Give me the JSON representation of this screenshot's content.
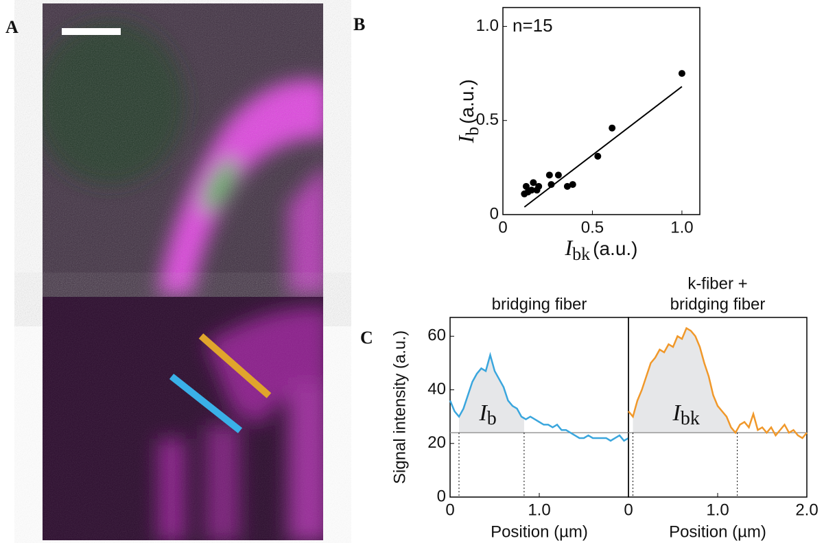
{
  "panel_labels": [
    "A",
    "B",
    "C"
  ],
  "chart_data": [
    {
      "type": "scatter",
      "annotation": "n=15",
      "color": "#000000",
      "x": [
        0.12,
        0.13,
        0.14,
        0.16,
        0.17,
        0.19,
        0.2,
        0.26,
        0.27,
        0.31,
        0.36,
        0.39,
        0.53,
        0.61,
        1.0
      ],
      "y": [
        0.11,
        0.15,
        0.12,
        0.13,
        0.17,
        0.13,
        0.15,
        0.21,
        0.16,
        0.21,
        0.15,
        0.16,
        0.31,
        0.46,
        0.75
      ],
      "fit": {
        "x": [
          0.12,
          1.0
        ],
        "y": [
          0.04,
          0.68
        ]
      },
      "xlim": [
        0,
        1.1
      ],
      "ylim": [
        0,
        1.1
      ],
      "xticks": [
        0,
        0.5,
        {
          "value": 1,
          "label": "1.0"
        }
      ],
      "yticks": [
        0,
        0.5,
        {
          "value": 1,
          "label": "1.0"
        }
      ],
      "xlabel": {
        "symbol": "I",
        "sub": "bk",
        "unit": "(a.u.)"
      },
      "ylabel": {
        "symbol": "I",
        "sub": "b",
        "unit": "(a.u.)"
      }
    },
    {
      "type": "line",
      "title": [
        "bridging fiber"
      ],
      "x": [
        0,
        0.05,
        0.1,
        0.15,
        0.2,
        0.25,
        0.3,
        0.35,
        0.4,
        0.45,
        0.5,
        0.55,
        0.6,
        0.65,
        0.7,
        0.75,
        0.8,
        0.85,
        0.9,
        0.95,
        1.0,
        1.05,
        1.1,
        1.15,
        1.2,
        1.25,
        1.3,
        1.35,
        1.4,
        1.45,
        1.5,
        1.55,
        1.6,
        1.65,
        1.7,
        1.75,
        1.8,
        1.85,
        1.9,
        1.95,
        2.0
      ],
      "series": [
        {
          "color": "#3aa6dd",
          "values": [
            36,
            32,
            30,
            33,
            38,
            43,
            46,
            48,
            47,
            53,
            47,
            44,
            41,
            36,
            34,
            33,
            30,
            29,
            30,
            29,
            28,
            27,
            27,
            26,
            27,
            25,
            25,
            24,
            23,
            22,
            22,
            23,
            22,
            22,
            22,
            22,
            21,
            22,
            23,
            21,
            22
          ]
        }
      ],
      "baseline": 24,
      "bounds": [
        0.1,
        0.83
      ],
      "annotation": {
        "symbol": "I",
        "sub": "b"
      },
      "xlim": [
        0,
        2
      ],
      "ylim": [
        0,
        67
      ],
      "xticks": [
        0,
        {
          "value": 1,
          "label": "1.0"
        }
      ],
      "yticks": [
        0,
        20,
        40,
        60
      ],
      "xlabel": "Position (µm)",
      "ylabel": "Signal intensity (a.u.)"
    },
    {
      "type": "line",
      "title": [
        "k-fiber +",
        "bridging fiber"
      ],
      "x": [
        0,
        0.05,
        0.1,
        0.15,
        0.2,
        0.25,
        0.3,
        0.35,
        0.4,
        0.45,
        0.5,
        0.55,
        0.6,
        0.65,
        0.7,
        0.75,
        0.8,
        0.85,
        0.9,
        0.95,
        1.0,
        1.05,
        1.1,
        1.15,
        1.2,
        1.25,
        1.3,
        1.35,
        1.4,
        1.45,
        1.5,
        1.55,
        1.6,
        1.65,
        1.7,
        1.75,
        1.8,
        1.85,
        1.9,
        1.95,
        2.0
      ],
      "series": [
        {
          "color": "#f0982a",
          "values": [
            32,
            30,
            36,
            40,
            45,
            50,
            52,
            55,
            54,
            57,
            56,
            60,
            59,
            63,
            62,
            60,
            56,
            50,
            45,
            38,
            34,
            32,
            30,
            26,
            24,
            27,
            28,
            26,
            31,
            25,
            26,
            24,
            26,
            23,
            25,
            27,
            24,
            25,
            23,
            22,
            24
          ]
        }
      ],
      "baseline": 24,
      "bounds": [
        0.05,
        1.22
      ],
      "annotation": {
        "symbol": "I",
        "sub": "bk"
      },
      "xlim": [
        0,
        2
      ],
      "ylim": [
        0,
        67
      ],
      "xticks": [
        0,
        {
          "value": 1,
          "label": "1.0"
        },
        {
          "value": 2,
          "label": "2.0"
        }
      ],
      "xlabel": "Position (µm)"
    }
  ]
}
